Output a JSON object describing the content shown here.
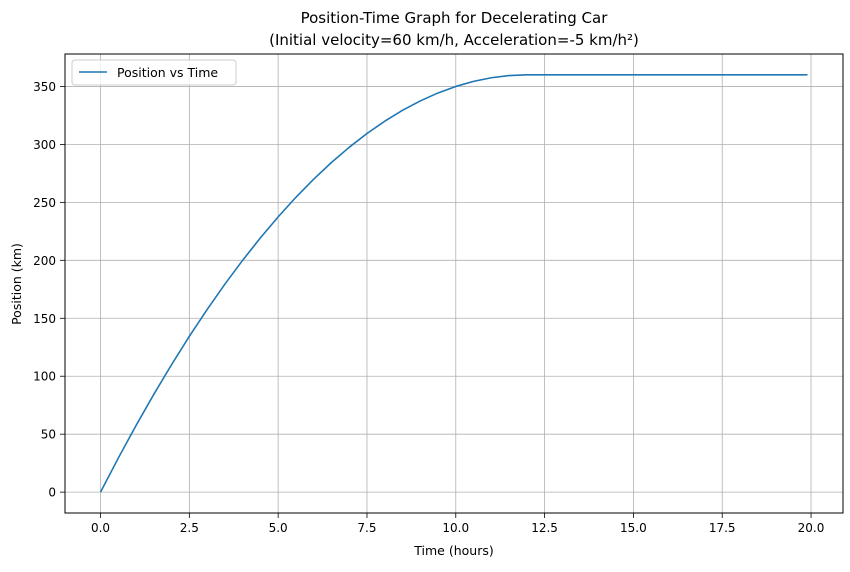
{
  "chart_data": {
    "type": "line",
    "title": "Position-Time Graph for Decelerating Car",
    "subtitle": "(Initial velocity=60 km/h, Acceleration=-5 km/h²)",
    "xlabel": "Time (hours)",
    "ylabel": "Position (km)",
    "xlim": [
      -1.0,
      20.9
    ],
    "ylim": [
      -18,
      378
    ],
    "xticks": [
      0,
      2.5,
      5,
      7.5,
      10,
      12.5,
      15,
      17.5,
      20
    ],
    "xtick_labels": [
      "0.0",
      "2.5",
      "5.0",
      "7.5",
      "10.0",
      "12.5",
      "15.0",
      "17.5",
      "20.0"
    ],
    "yticks": [
      0,
      50,
      100,
      150,
      200,
      250,
      300,
      350
    ],
    "ytick_labels": [
      "0",
      "50",
      "100",
      "150",
      "200",
      "250",
      "300",
      "350"
    ],
    "grid": true,
    "legend_position": "top-left",
    "series": [
      {
        "name": "Position vs Time",
        "color": "#1f77b4",
        "x": [
          0,
          0.5,
          1,
          1.5,
          2,
          2.5,
          3,
          3.5,
          4,
          4.5,
          5,
          5.5,
          6,
          6.5,
          7,
          7.5,
          8,
          8.5,
          9,
          9.5,
          10,
          10.5,
          11,
          11.5,
          12,
          12.5,
          13,
          14,
          15,
          16,
          17,
          18,
          19,
          19.9
        ],
        "y": [
          0,
          29.4,
          57.5,
          84.4,
          110,
          134.4,
          157.5,
          179.4,
          200,
          219.4,
          237.5,
          254.4,
          270,
          284.4,
          297.5,
          309.4,
          320,
          329.4,
          337.5,
          344.4,
          350,
          354.4,
          357.5,
          359.4,
          360,
          360,
          360,
          360,
          360,
          360,
          360,
          360,
          360,
          360
        ]
      }
    ]
  }
}
